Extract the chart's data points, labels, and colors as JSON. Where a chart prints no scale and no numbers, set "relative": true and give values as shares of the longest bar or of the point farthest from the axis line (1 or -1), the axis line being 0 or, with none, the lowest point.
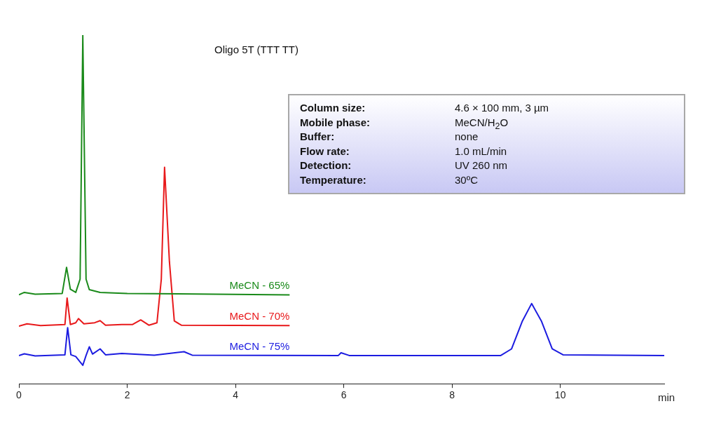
{
  "chart_data": {
    "type": "line",
    "title": "Oligo 5T (TTT TT)",
    "xlabel": "min",
    "relative": true,
    "xlim": [
      0,
      11.92
    ],
    "xticks": [
      0,
      2,
      4,
      6,
      8,
      10
    ],
    "grid": false,
    "marker": "none",
    "line_style": "solid",
    "annotations": [
      "Column size:",
      "4.6 × 100 mm, 3 µm",
      "Mobile phase:",
      "MeCN/H$_{2}$O",
      "Buffer:",
      "none",
      "Flow rate:",
      "1.0 mL/min",
      "Detection:",
      "UV 260 nm",
      "Temperature:",
      "30ºC"
    ],
    "series": [
      {
        "name": "MeCN - 65%",
        "color": "#1a8a1a",
        "x": [
          0,
          0.1,
          0.3,
          0.8,
          0.88,
          0.95,
          1.05,
          1.13,
          1.18,
          1.24,
          1.3,
          1.5,
          2,
          5
        ],
        "values": [
          0.255,
          0.262,
          0.257,
          0.259,
          0.334,
          0.271,
          0.262,
          0.3,
          1.0,
          0.3,
          0.27,
          0.262,
          0.259,
          0.255
        ]
      },
      {
        "name": "MeCN - 70%",
        "color": "#e8191b",
        "x": [
          0,
          0.15,
          0.4,
          0.85,
          0.89,
          0.95,
          1.05,
          1.1,
          1.2,
          1.4,
          1.5,
          1.6,
          1.9,
          2.1,
          2.25,
          2.4,
          2.55,
          2.63,
          2.69,
          2.78,
          2.87,
          3.0,
          5
        ],
        "values": [
          0.165,
          0.172,
          0.167,
          0.17,
          0.246,
          0.17,
          0.175,
          0.187,
          0.172,
          0.175,
          0.181,
          0.168,
          0.17,
          0.17,
          0.183,
          0.168,
          0.175,
          0.3,
          0.621,
          0.35,
          0.18,
          0.168,
          0.167
        ]
      },
      {
        "name": "MeCN - 75%",
        "color": "#1c1ce0",
        "x": [
          0,
          0.1,
          0.3,
          0.85,
          0.9,
          0.96,
          1.05,
          1.18,
          1.24,
          1.3,
          1.36,
          1.5,
          1.6,
          1.9,
          2.5,
          3.05,
          3.2,
          5.9,
          5.95,
          6.1,
          8.9,
          9.1,
          9.3,
          9.47,
          9.65,
          9.85,
          10.05,
          11.92
        ],
        "values": [
          0.081,
          0.086,
          0.08,
          0.083,
          0.161,
          0.083,
          0.078,
          0.053,
          0.081,
          0.106,
          0.085,
          0.1,
          0.083,
          0.087,
          0.082,
          0.092,
          0.082,
          0.081,
          0.089,
          0.081,
          0.081,
          0.1,
          0.18,
          0.23,
          0.18,
          0.1,
          0.083,
          0.081
        ]
      }
    ]
  }
}
